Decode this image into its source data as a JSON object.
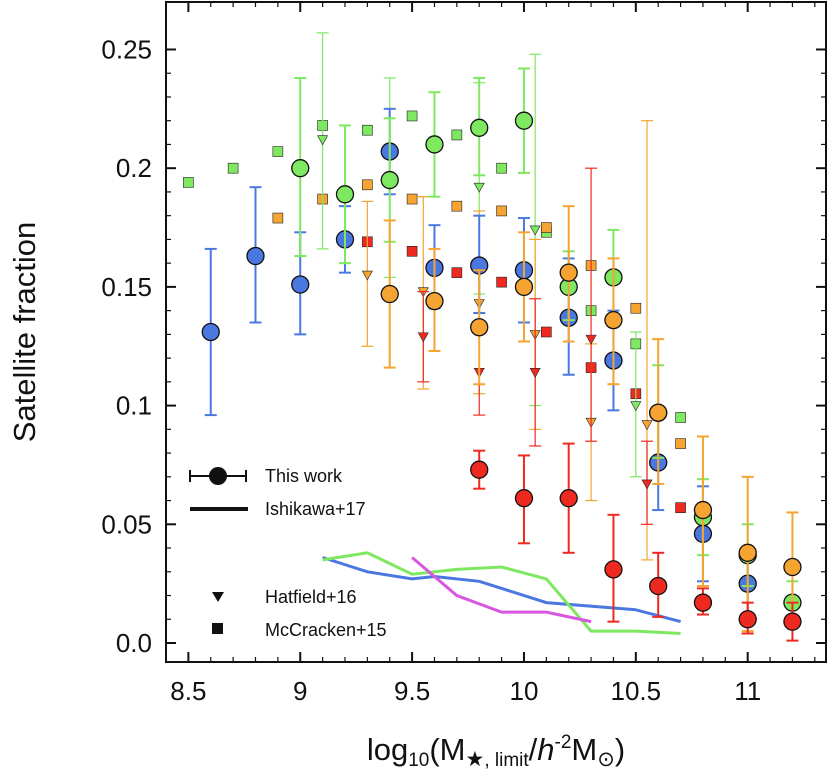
{
  "chart_data": {
    "type": "scatter",
    "title": "",
    "ylabel": "Satellite fraction",
    "xlabel": {
      "prefix": "log",
      "sub10": "10",
      "open": "(M",
      "star": "★",
      "sub_limit": ", limit",
      "slash": "/",
      "h": "h",
      "sup": "-2",
      "msun": "M",
      "sun": "⊙",
      "close": ")"
    },
    "xlim": [
      8.4,
      11.35
    ],
    "ylim": [
      -0.008,
      0.27
    ],
    "xticks": [
      8.5,
      9,
      9.5,
      10,
      10.5,
      11
    ],
    "xtick_labels": [
      "8.5",
      "9",
      "9.5",
      "10",
      "10.5",
      "11"
    ],
    "yticks": [
      0.0,
      0.05,
      0.1,
      0.15,
      0.2,
      0.25
    ],
    "ytick_labels": [
      "0.0",
      "0.05",
      "0.1",
      "0.15",
      "0.2",
      "0.25"
    ],
    "colors": {
      "blue": "#4a78e0",
      "green": "#7de860",
      "orange": "#f5a432",
      "red": "#ee2a20",
      "magenta": "#d957e0"
    },
    "this_work": [
      {
        "name": "blue",
        "points": [
          {
            "x": 8.6,
            "y": 0.131,
            "lo": 0.096,
            "hi": 0.166
          },
          {
            "x": 8.8,
            "y": 0.163,
            "lo": 0.135,
            "hi": 0.192
          },
          {
            "x": 9.0,
            "y": 0.151,
            "lo": 0.13,
            "hi": 0.173
          },
          {
            "x": 9.2,
            "y": 0.17,
            "lo": 0.156,
            "hi": 0.184
          },
          {
            "x": 9.4,
            "y": 0.207,
            "lo": 0.189,
            "hi": 0.225
          },
          {
            "x": 9.6,
            "y": 0.158,
            "lo": 0.141,
            "hi": 0.176
          },
          {
            "x": 9.8,
            "y": 0.159,
            "lo": 0.139,
            "hi": 0.18
          },
          {
            "x": 10.0,
            "y": 0.157,
            "lo": 0.135,
            "hi": 0.179
          },
          {
            "x": 10.2,
            "y": 0.137,
            "lo": 0.113,
            "hi": 0.162
          },
          {
            "x": 10.4,
            "y": 0.119,
            "lo": 0.098,
            "hi": 0.14
          },
          {
            "x": 10.6,
            "y": 0.076,
            "lo": 0.056,
            "hi": 0.096
          },
          {
            "x": 10.8,
            "y": 0.046,
            "lo": 0.026,
            "hi": 0.066
          },
          {
            "x": 11.0,
            "y": 0.025,
            "lo": 0.011,
            "hi": 0.04
          }
        ]
      },
      {
        "name": "green",
        "points": [
          {
            "x": 9.0,
            "y": 0.2,
            "lo": 0.163,
            "hi": 0.238
          },
          {
            "x": 9.2,
            "y": 0.189,
            "lo": 0.16,
            "hi": 0.218
          },
          {
            "x": 9.4,
            "y": 0.195,
            "lo": 0.169,
            "hi": 0.221
          },
          {
            "x": 9.6,
            "y": 0.21,
            "lo": 0.188,
            "hi": 0.232
          },
          {
            "x": 9.8,
            "y": 0.217,
            "lo": 0.197,
            "hi": 0.238
          },
          {
            "x": 10.0,
            "y": 0.22,
            "lo": 0.198,
            "hi": 0.242
          },
          {
            "x": 10.2,
            "y": 0.15,
            "lo": 0.136,
            "hi": 0.165
          },
          {
            "x": 10.4,
            "y": 0.154,
            "lo": 0.134,
            "hi": 0.174
          },
          {
            "x": 10.6,
            "y": 0.097,
            "lo": 0.078,
            "hi": 0.117
          },
          {
            "x": 10.8,
            "y": 0.053,
            "lo": 0.037,
            "hi": 0.069
          },
          {
            "x": 11.0,
            "y": 0.037,
            "lo": 0.024,
            "hi": 0.05
          },
          {
            "x": 11.2,
            "y": 0.017,
            "lo": 0.008,
            "hi": 0.026
          }
        ]
      },
      {
        "name": "orange",
        "points": [
          {
            "x": 9.4,
            "y": 0.147,
            "lo": 0.116,
            "hi": 0.178
          },
          {
            "x": 9.6,
            "y": 0.144,
            "lo": 0.123,
            "hi": 0.166
          },
          {
            "x": 9.8,
            "y": 0.133,
            "lo": 0.109,
            "hi": 0.157
          },
          {
            "x": 10.0,
            "y": 0.15,
            "lo": 0.127,
            "hi": 0.173
          },
          {
            "x": 10.2,
            "y": 0.156,
            "lo": 0.127,
            "hi": 0.184
          },
          {
            "x": 10.4,
            "y": 0.136,
            "lo": 0.109,
            "hi": 0.162
          },
          {
            "x": 10.6,
            "y": 0.097,
            "lo": 0.067,
            "hi": 0.128
          },
          {
            "x": 10.8,
            "y": 0.056,
            "lo": 0.024,
            "hi": 0.087
          },
          {
            "x": 11.0,
            "y": 0.038,
            "lo": 0.005,
            "hi": 0.07
          },
          {
            "x": 11.2,
            "y": 0.032,
            "lo": 0.01,
            "hi": 0.055
          }
        ]
      },
      {
        "name": "red",
        "points": [
          {
            "x": 9.8,
            "y": 0.073,
            "lo": 0.065,
            "hi": 0.081
          },
          {
            "x": 10.0,
            "y": 0.061,
            "lo": 0.042,
            "hi": 0.079
          },
          {
            "x": 10.2,
            "y": 0.061,
            "lo": 0.038,
            "hi": 0.084
          },
          {
            "x": 10.4,
            "y": 0.031,
            "lo": 0.009,
            "hi": 0.054
          },
          {
            "x": 10.6,
            "y": 0.024,
            "lo": 0.011,
            "hi": 0.038
          },
          {
            "x": 10.8,
            "y": 0.017,
            "lo": 0.012,
            "hi": 0.023
          },
          {
            "x": 11.0,
            "y": 0.01,
            "lo": 0.004,
            "hi": 0.017
          },
          {
            "x": 11.2,
            "y": 0.009,
            "lo": 0.001,
            "hi": 0.017
          }
        ]
      }
    ],
    "hatfield16": [
      {
        "name": "green",
        "points": [
          {
            "x": 9.1,
            "y": 0.212,
            "lo": 0.166,
            "hi": 0.257
          },
          {
            "x": 9.4,
            "y": 0.196,
            "lo": 0.154,
            "hi": 0.238
          },
          {
            "x": 9.8,
            "y": 0.192,
            "lo": 0.147,
            "hi": 0.236
          },
          {
            "x": 10.05,
            "y": 0.174,
            "lo": 0.1,
            "hi": 0.248
          },
          {
            "x": 10.5,
            "y": 0.1,
            "lo": 0.07,
            "hi": 0.131
          }
        ]
      },
      {
        "name": "orange",
        "points": [
          {
            "x": 9.3,
            "y": 0.155,
            "lo": 0.125,
            "hi": 0.186
          },
          {
            "x": 9.55,
            "y": 0.148,
            "lo": 0.107,
            "hi": 0.188
          },
          {
            "x": 9.8,
            "y": 0.143,
            "lo": 0.105,
            "hi": 0.182
          },
          {
            "x": 10.05,
            "y": 0.13,
            "lo": 0.09,
            "hi": 0.17
          },
          {
            "x": 10.3,
            "y": 0.093,
            "lo": 0.06,
            "hi": 0.126
          },
          {
            "x": 10.55,
            "y": 0.092,
            "lo": 0.035,
            "hi": 0.22
          }
        ]
      },
      {
        "name": "red",
        "points": [
          {
            "x": 9.55,
            "y": 0.129,
            "lo": 0.11,
            "hi": 0.148
          },
          {
            "x": 9.8,
            "y": 0.114,
            "lo": 0.096,
            "hi": 0.132
          },
          {
            "x": 10.05,
            "y": 0.114,
            "lo": 0.083,
            "hi": 0.145
          },
          {
            "x": 10.3,
            "y": 0.128,
            "lo": 0.085,
            "hi": 0.2
          },
          {
            "x": 10.55,
            "y": 0.067,
            "lo": 0.05,
            "hi": 0.085
          }
        ]
      }
    ],
    "mccracken15": [
      {
        "name": "green",
        "points": [
          {
            "x": 8.5,
            "y": 0.194
          },
          {
            "x": 8.7,
            "y": 0.2
          },
          {
            "x": 8.9,
            "y": 0.207
          },
          {
            "x": 9.1,
            "y": 0.218
          },
          {
            "x": 9.3,
            "y": 0.216
          },
          {
            "x": 9.5,
            "y": 0.222
          },
          {
            "x": 9.7,
            "y": 0.214
          },
          {
            "x": 9.9,
            "y": 0.2
          },
          {
            "x": 10.1,
            "y": 0.173
          },
          {
            "x": 10.3,
            "y": 0.14
          },
          {
            "x": 10.5,
            "y": 0.126
          },
          {
            "x": 10.7,
            "y": 0.095
          }
        ]
      },
      {
        "name": "orange",
        "points": [
          {
            "x": 8.9,
            "y": 0.179
          },
          {
            "x": 9.1,
            "y": 0.187
          },
          {
            "x": 9.3,
            "y": 0.193
          },
          {
            "x": 9.5,
            "y": 0.187
          },
          {
            "x": 9.7,
            "y": 0.184
          },
          {
            "x": 9.9,
            "y": 0.182
          },
          {
            "x": 10.1,
            "y": 0.175
          },
          {
            "x": 10.3,
            "y": 0.159
          },
          {
            "x": 10.5,
            "y": 0.141
          },
          {
            "x": 10.7,
            "y": 0.084
          }
        ]
      },
      {
        "name": "red",
        "points": [
          {
            "x": 9.3,
            "y": 0.169
          },
          {
            "x": 9.5,
            "y": 0.165
          },
          {
            "x": 9.7,
            "y": 0.156
          },
          {
            "x": 9.9,
            "y": 0.152
          },
          {
            "x": 10.1,
            "y": 0.131
          },
          {
            "x": 10.3,
            "y": 0.116
          },
          {
            "x": 10.5,
            "y": 0.105
          },
          {
            "x": 10.7,
            "y": 0.057
          }
        ]
      }
    ],
    "ishikawa17": [
      {
        "name": "blue",
        "x": [
          9.1,
          9.3,
          9.5,
          9.6,
          9.8,
          10.1,
          10.5,
          10.7
        ],
        "y": [
          0.036,
          0.03,
          0.027,
          0.028,
          0.026,
          0.017,
          0.014,
          0.009
        ]
      },
      {
        "name": "green",
        "x": [
          9.1,
          9.3,
          9.5,
          9.7,
          9.9,
          10.1,
          10.3,
          10.5,
          10.7
        ],
        "y": [
          0.035,
          0.038,
          0.029,
          0.031,
          0.032,
          0.027,
          0.005,
          0.005,
          0.004
        ]
      },
      {
        "name": "magenta",
        "x": [
          9.5,
          9.7,
          9.9,
          10.1,
          10.3
        ],
        "y": [
          0.036,
          0.02,
          0.013,
          0.013,
          0.009
        ]
      }
    ],
    "legend": [
      {
        "label": "This work",
        "marker": "circle-errorbar"
      },
      {
        "label": "Ishikawa+17",
        "marker": "line"
      },
      {
        "label": "Hatfield+16",
        "marker": "triangle-down"
      },
      {
        "label": "McCracken+15",
        "marker": "square"
      }
    ]
  }
}
